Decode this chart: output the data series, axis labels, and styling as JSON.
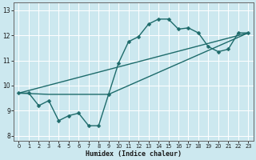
{
  "xlabel": "Humidex (Indice chaleur)",
  "bg_color": "#cce8ef",
  "grid_color": "#ffffff",
  "line_color": "#1e6b6b",
  "xlim": [
    -0.5,
    23.5
  ],
  "ylim": [
    7.8,
    13.3
  ],
  "xticks": [
    0,
    1,
    2,
    3,
    4,
    5,
    6,
    7,
    8,
    9,
    10,
    11,
    12,
    13,
    14,
    15,
    16,
    17,
    18,
    19,
    20,
    21,
    22,
    23
  ],
  "yticks": [
    8,
    9,
    10,
    11,
    12,
    13
  ],
  "series1_x": [
    0,
    1,
    2,
    3,
    4,
    5,
    6,
    7,
    8,
    9,
    10,
    11,
    12,
    13,
    14,
    15,
    16,
    17,
    18,
    19,
    20,
    21,
    22,
    23
  ],
  "series1_y": [
    9.7,
    9.7,
    9.2,
    9.4,
    8.6,
    8.8,
    8.9,
    8.4,
    8.4,
    9.65,
    10.9,
    11.75,
    11.95,
    12.45,
    12.65,
    12.65,
    12.25,
    12.3,
    12.1,
    11.55,
    11.35,
    11.45,
    12.1,
    12.1
  ],
  "series2_x": [
    0,
    3,
    9,
    23
  ],
  "series2_y": [
    9.7,
    9.65,
    9.65,
    12.1
  ],
  "series3_x": [
    0,
    23
  ],
  "series3_y": [
    9.7,
    12.1
  ],
  "marker_size": 2.5,
  "line_width": 1.0
}
